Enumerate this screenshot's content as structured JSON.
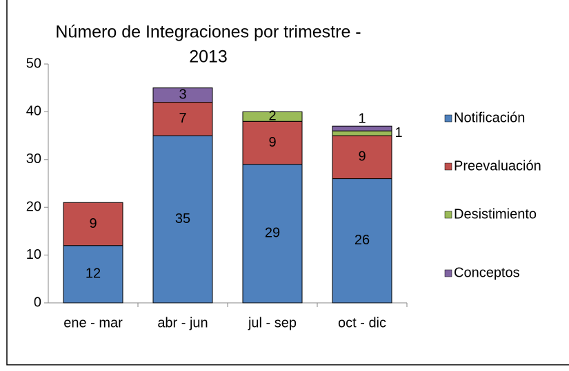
{
  "chart_data": {
    "type": "stacked_bar",
    "title": [
      "Número de Integraciones por trimestre -",
      "2013"
    ],
    "categories": [
      "ene - mar",
      "abr - jun",
      "jul - sep",
      "oct - dic"
    ],
    "series": [
      {
        "name": "Notificación",
        "color": "#4f81bd",
        "values": [
          12,
          35,
          29,
          26
        ]
      },
      {
        "name": "Preevaluación",
        "color": "#c0504d",
        "values": [
          9,
          7,
          9,
          9
        ]
      },
      {
        "name": "Desistimiento",
        "color": "#9bbb59",
        "values": [
          null,
          null,
          2,
          1
        ]
      },
      {
        "name": "Conceptos",
        "color": "#8064a2",
        "values": [
          null,
          3,
          null,
          1
        ]
      }
    ],
    "ylim": [
      0,
      50
    ],
    "yticks": [
      0,
      10,
      20,
      30,
      40,
      50
    ],
    "grid": false,
    "legend": "right"
  }
}
